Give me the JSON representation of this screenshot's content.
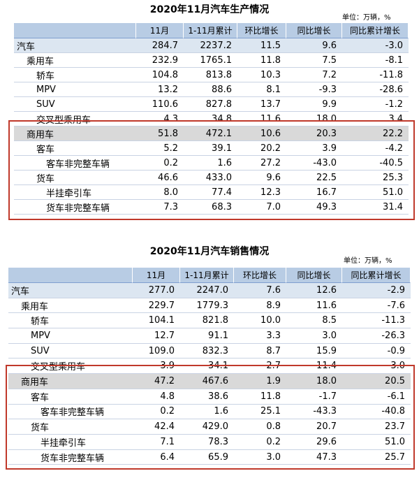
{
  "tables": [
    {
      "title": "2020年11月汽车生产情况",
      "unit": "单位：万辆，%",
      "header": [
        "11月",
        "1-11月累计",
        "环比增长",
        "同比增长",
        "同比累计增长"
      ],
      "rows": [
        {
          "label": "汽车",
          "values": [
            "284.7",
            "2237.2",
            "11.5",
            "9.6",
            "-3.0"
          ]
        },
        {
          "label": "乘用车",
          "values": [
            "232.9",
            "1765.1",
            "11.8",
            "7.5",
            "-8.1"
          ]
        },
        {
          "label": "轿车",
          "values": [
            "104.8",
            "813.8",
            "10.3",
            "7.2",
            "-11.8"
          ]
        },
        {
          "label": "MPV",
          "values": [
            "13.2",
            "88.6",
            "8.1",
            "-9.3",
            "-28.6"
          ]
        },
        {
          "label": "SUV",
          "values": [
            "110.6",
            "827.8",
            "13.7",
            "9.9",
            "-1.2"
          ]
        },
        {
          "label": "交叉型乘用车",
          "values": [
            "4.3",
            "34.8",
            "11.6",
            "18.0",
            "3.4"
          ]
        },
        {
          "label": "商用车",
          "values": [
            "51.8",
            "472.1",
            "10.6",
            "20.3",
            "22.2"
          ]
        },
        {
          "label": "客车",
          "values": [
            "5.2",
            "39.1",
            "20.2",
            "3.9",
            "-4.2"
          ]
        },
        {
          "label": "客车非完整车辆",
          "values": [
            "0.2",
            "1.6",
            "27.2",
            "-43.0",
            "-40.5"
          ]
        },
        {
          "label": "货车",
          "values": [
            "46.6",
            "433.0",
            "9.6",
            "22.5",
            "25.3"
          ]
        },
        {
          "label": "半挂牵引车",
          "values": [
            "8.0",
            "77.4",
            "12.3",
            "16.7",
            "51.0"
          ]
        },
        {
          "label": "货车非完整车辆",
          "values": [
            "7.3",
            "68.3",
            "7.0",
            "49.3",
            "31.4"
          ]
        }
      ]
    },
    {
      "title": "2020年11月汽车销售情况",
      "unit": "单位：万辆，%",
      "header": [
        "11月",
        "1-11月累计",
        "环比增长",
        "同比增长",
        "同比累计增长"
      ],
      "rows": [
        {
          "label": "汽车",
          "values": [
            "277.0",
            "2247.0",
            "7.6",
            "12.6",
            "-2.9"
          ]
        },
        {
          "label": "乘用车",
          "values": [
            "229.7",
            "1779.3",
            "8.9",
            "11.6",
            "-7.6"
          ]
        },
        {
          "label": "轿车",
          "values": [
            "104.1",
            "821.8",
            "10.0",
            "8.5",
            "-11.3"
          ]
        },
        {
          "label": "MPV",
          "values": [
            "12.7",
            "91.1",
            "3.3",
            "3.0",
            "-26.3"
          ]
        },
        {
          "label": "SUV",
          "values": [
            "109.0",
            "832.3",
            "8.7",
            "15.9",
            "-0.9"
          ]
        },
        {
          "label": "交叉型乘用车",
          "values": [
            "3.9",
            "34.1",
            "2.7",
            "11.4",
            "3.0"
          ]
        },
        {
          "label": "商用车",
          "values": [
            "47.2",
            "467.6",
            "1.9",
            "18.0",
            "20.5"
          ]
        },
        {
          "label": "客车",
          "values": [
            "4.8",
            "38.6",
            "11.8",
            "-1.7",
            "-6.1"
          ]
        },
        {
          "label": "客车非完整车辆",
          "values": [
            "0.2",
            "1.6",
            "25.1",
            "-43.3",
            "-40.8"
          ]
        },
        {
          "label": "货车",
          "values": [
            "42.4",
            "429.0",
            "0.8",
            "20.7",
            "23.7"
          ]
        },
        {
          "label": "半挂牵引车",
          "values": [
            "7.1",
            "78.3",
            "0.2",
            "29.6",
            "51.0"
          ]
        },
        {
          "label": "货车非完整车辆",
          "values": [
            "6.4",
            "65.9",
            "3.0",
            "47.3",
            "25.7"
          ]
        }
      ]
    }
  ]
}
